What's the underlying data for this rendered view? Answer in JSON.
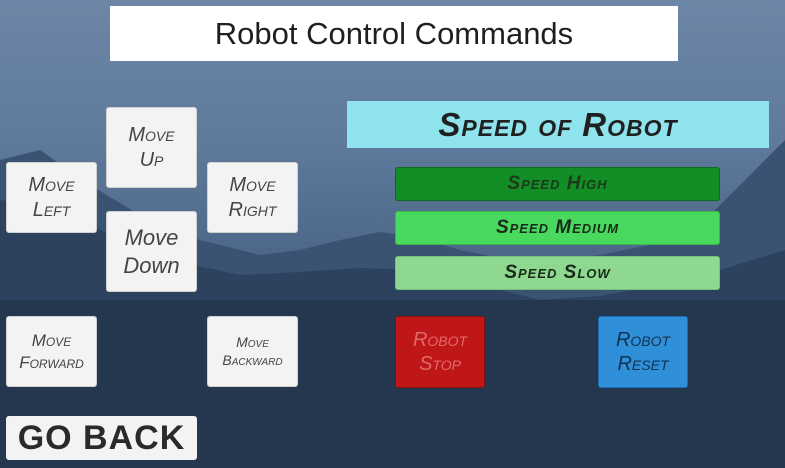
{
  "title": "Robot Control Commands",
  "movement": {
    "up": "Move Up",
    "left": "Move Left",
    "right": "Move Right",
    "down": "Move Down",
    "forward": "Move Forward",
    "backward": "Move Backward"
  },
  "speed": {
    "header": "Speed of Robot",
    "high": "Speed High",
    "medium": "Speed Medium",
    "slow": "Speed Slow"
  },
  "actions": {
    "stop": "Robot Stop",
    "reset": "Robot Reset"
  },
  "nav": {
    "back": "GO BACK"
  },
  "colors": {
    "speed_header": "#8ee3ec",
    "speed_high": "#138e27",
    "speed_medium": "#48d95e",
    "speed_slow": "#8ed98f",
    "stop": "#bf1717",
    "reset": "#2f8fd9"
  }
}
